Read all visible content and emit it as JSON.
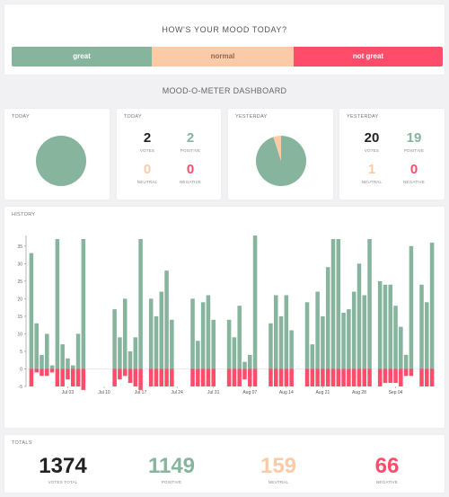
{
  "mood": {
    "question": "HOW'S YOUR MOOD TODAY?",
    "buttons": {
      "great": "great",
      "normal": "normal",
      "not_great": "not great"
    }
  },
  "dashboard_title": "MOOD-O-METER DASHBOARD",
  "today": {
    "pie_title": "TODAY",
    "stats_title": "TODAY",
    "votes": "2",
    "positive": "2",
    "neutral": "0",
    "negative": "0",
    "pie": {
      "positive": 2,
      "neutral": 0,
      "negative": 0
    }
  },
  "yesterday": {
    "pie_title": "YESTERDAY",
    "stats_title": "YESTERDAY",
    "votes": "20",
    "positive": "19",
    "neutral": "1",
    "negative": "0",
    "pie": {
      "positive": 19,
      "neutral": 1,
      "negative": 0
    }
  },
  "labels": {
    "votes": "VOTES",
    "positive": "POSITIVE",
    "neutral": "NEUTRAL",
    "negative": "NEGATIVE"
  },
  "history": {
    "title": "HISTORY"
  },
  "totals": {
    "title": "TOTALS",
    "votes_total": "1374",
    "positive": "1149",
    "neutral": "159",
    "negative": "66",
    "labels": {
      "votes_total": "VOTES TOTAL",
      "positive": "POSITIVE",
      "neutral": "NEUTRAL",
      "negative": "NEGATIVE"
    }
  },
  "colors": {
    "positive": "#86b49c",
    "neutral": "#fbcaa6",
    "negative": "#ff4c6a"
  },
  "chart_data": {
    "type": "bar",
    "title": "HISTORY",
    "ylim": [
      -5,
      37
    ],
    "yticks": [
      -5,
      0,
      5,
      10,
      15,
      20,
      25,
      30,
      35
    ],
    "xtick_labels": [
      "Jul 03",
      "Jul 10",
      "Jul 17",
      "Jul 24",
      "Jul 31",
      "Aug 07",
      "Aug 14",
      "Aug 21",
      "Aug 28",
      "Sep 04"
    ],
    "series": [
      {
        "values": [
          33,
          13,
          4,
          10,
          1,
          37,
          7,
          3,
          1,
          10,
          37,
          null,
          null,
          null,
          null,
          null,
          17,
          9,
          20,
          5,
          9,
          37,
          null,
          20,
          15,
          22,
          28,
          14,
          null,
          null,
          null,
          20,
          8,
          19,
          21,
          14,
          null,
          null,
          14,
          9,
          18,
          2,
          4,
          38,
          null,
          null,
          13,
          21,
          15,
          21,
          11,
          null,
          null,
          19,
          7,
          22,
          15,
          29,
          37,
          37,
          16,
          17,
          22,
          30,
          21,
          37,
          null,
          25,
          24,
          24,
          18,
          12,
          4,
          35,
          null,
          24,
          19,
          36
        ]
      },
      {
        "values": [
          -5,
          -1,
          -2,
          -2,
          -1,
          -5,
          -5,
          -3,
          -5,
          -5,
          -6,
          null,
          null,
          null,
          null,
          null,
          -5,
          -3,
          -2,
          -4,
          -5,
          -6,
          null,
          -5,
          -5,
          -5,
          -5,
          -5,
          null,
          null,
          null,
          -5,
          -5,
          -5,
          -5,
          -5,
          null,
          null,
          -5,
          -5,
          -5,
          -3,
          -5,
          -5,
          null,
          null,
          -5,
          -5,
          -5,
          -5,
          -5,
          null,
          null,
          -5,
          -5,
          -5,
          -5,
          -5,
          -5,
          -5,
          -5,
          -5,
          -5,
          -5,
          -5,
          -5,
          null,
          -5,
          -4,
          -4,
          -4,
          -5,
          -2,
          -2,
          null,
          -5,
          -5,
          -5
        ]
      }
    ]
  }
}
